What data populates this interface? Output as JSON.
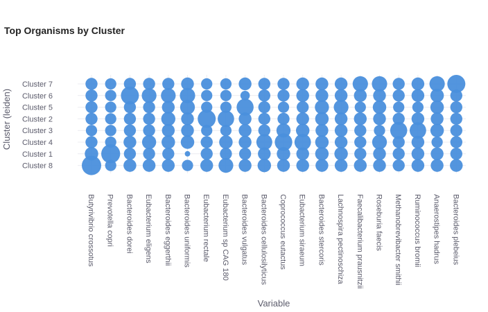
{
  "chart_data": {
    "type": "scatter",
    "title": "Top Organisms by Cluster",
    "xlabel": "Variable",
    "ylabel": "Cluster (leiden)",
    "categories_y": [
      "Cluster 7",
      "Cluster 6",
      "Cluster 5",
      "Cluster 2",
      "Cluster 3",
      "Cluster 4",
      "Cluster 1",
      "Cluster 8"
    ],
    "categories_x": [
      "Butyrivibrio crossotus",
      "Prevotella copri",
      "Bacteroides dorei",
      "Eubacterium eligens",
      "Bacteroides eggerthii",
      "Bacteroides uniformis",
      "Eubacterium rectale",
      "Eubacterium sp CAG 180",
      "Bacteroides vulgatus",
      "Bacteroides cellulosilyticus",
      "Coprococcus eutactus",
      "Eubacterium siraeum",
      "Bacteroides stercoris",
      "Lachnospira pectinoschiza",
      "Faecalibacterium prausnitzii",
      "Roseburia faecis",
      "Methanobrevibacter smithii",
      "Ruminococcus bromii",
      "Anaerostipes hadrus",
      "Bacteroides plebeius"
    ],
    "size_values": [
      [
        0.35,
        0.3,
        0.35,
        0.35,
        0.35,
        0.4,
        0.3,
        0.3,
        0.4,
        0.35,
        0.35,
        0.4,
        0.4,
        0.4,
        0.6,
        0.6,
        0.35,
        0.4,
        0.6,
        0.85
      ],
      [
        0.35,
        0.3,
        0.85,
        0.55,
        0.55,
        0.6,
        0.3,
        0.3,
        0.2,
        0.35,
        0.35,
        0.4,
        0.4,
        0.4,
        0.4,
        0.4,
        0.35,
        0.4,
        0.45,
        0.35
      ],
      [
        0.35,
        0.3,
        0.35,
        0.35,
        0.4,
        0.55,
        0.3,
        0.3,
        0.75,
        0.35,
        0.3,
        0.35,
        0.5,
        0.55,
        0.3,
        0.45,
        0.3,
        0.3,
        0.45,
        0.35
      ],
      [
        0.35,
        0.3,
        0.35,
        0.35,
        0.5,
        0.4,
        0.85,
        0.7,
        0.4,
        0.35,
        0.35,
        0.4,
        0.45,
        0.4,
        0.4,
        0.4,
        0.35,
        0.4,
        0.4,
        0.35
      ],
      [
        0.3,
        0.3,
        0.35,
        0.35,
        0.4,
        0.4,
        0.3,
        0.3,
        0.4,
        0.35,
        0.5,
        0.45,
        0.4,
        0.4,
        0.35,
        0.3,
        0.75,
        0.7,
        0.45,
        0.35
      ],
      [
        0.35,
        0.3,
        0.4,
        0.5,
        0.45,
        0.45,
        0.35,
        0.45,
        0.4,
        0.65,
        0.8,
        0.7,
        0.45,
        0.4,
        0.35,
        0.55,
        0.35,
        0.4,
        0.3,
        0.35
      ],
      [
        0.45,
        0.95,
        0.35,
        0.35,
        0.35,
        0.05,
        0.35,
        0.35,
        0.35,
        0.4,
        0.45,
        0.4,
        0.45,
        0.45,
        0.35,
        0.4,
        0.35,
        0.4,
        0.4,
        0.35
      ],
      [
        1.0,
        0.3,
        0.4,
        0.4,
        0.4,
        0.3,
        0.4,
        0.55,
        0.4,
        0.45,
        0.4,
        0.4,
        0.4,
        0.4,
        0.4,
        0.4,
        0.35,
        0.4,
        0.4,
        0.4
      ]
    ],
    "marker_color": "#4a8fdc",
    "marker_opacity": 0.95,
    "grid": true,
    "legend": "none"
  }
}
